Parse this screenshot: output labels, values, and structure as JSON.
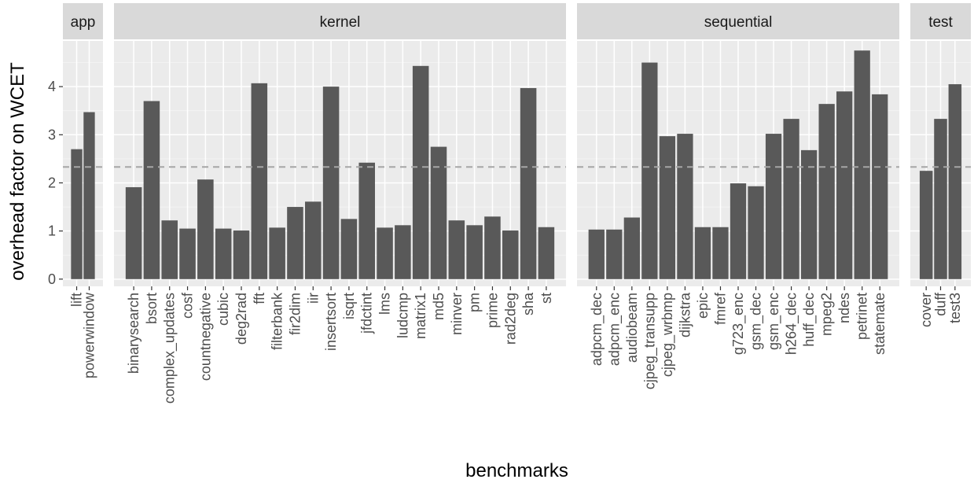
{
  "chart_data": {
    "type": "bar",
    "xlabel": "benchmarks",
    "ylabel": "overhead factor on WCET",
    "ylim": [
      -0.15,
      4.95
    ],
    "yticks": [
      0,
      1,
      2,
      3,
      4
    ],
    "reference_line": {
      "value": 2.33,
      "style": "dashed"
    },
    "grid": true,
    "facets": [
      {
        "name": "app",
        "categories": [
          "lift",
          "powerwindow"
        ],
        "values": [
          2.7,
          3.47
        ]
      },
      {
        "name": "kernel",
        "categories": [
          "binarysearch",
          "bsort",
          "complex_updates",
          "cosf",
          "countnegative",
          "cubic",
          "deg2rad",
          "fft",
          "filterbank",
          "fir2dim",
          "iir",
          "insertsort",
          "isqrt",
          "jfdctint",
          "lms",
          "ludcmp",
          "matrix1",
          "md5",
          "minver",
          "pm",
          "prime",
          "rad2deg",
          "sha",
          "st"
        ],
        "values": [
          1.91,
          3.7,
          1.22,
          1.05,
          2.07,
          1.05,
          1.01,
          4.07,
          1.07,
          1.5,
          1.61,
          4.0,
          1.25,
          2.42,
          1.07,
          1.12,
          4.43,
          2.75,
          1.22,
          1.12,
          1.3,
          1.01,
          3.97,
          1.08
        ]
      },
      {
        "name": "sequential",
        "categories": [
          "adpcm_dec",
          "adpcm_enc",
          "audiobeam",
          "cjpeg_transupp",
          "cjpeg_wrbmp",
          "dijkstra",
          "epic",
          "fmref",
          "g723_enc",
          "gsm_dec",
          "gsm_enc",
          "h264_dec",
          "huff_dec",
          "mpeg2",
          "ndes",
          "petrinet",
          "statemate"
        ],
        "values": [
          1.03,
          1.03,
          1.28,
          4.5,
          2.97,
          3.02,
          1.08,
          1.08,
          1.99,
          1.93,
          3.02,
          3.33,
          2.68,
          3.64,
          3.9,
          4.75,
          3.84
        ]
      },
      {
        "name": "test",
        "categories": [
          "cover",
          "duff",
          "test3"
        ],
        "values": [
          2.25,
          3.33,
          4.05
        ]
      }
    ],
    "colors": {
      "bar": "#595959",
      "panel": "#ebebeb",
      "strip": "#d9d9d9",
      "grid_major": "#ffffff",
      "reference_line": "#a6a6a6"
    }
  }
}
